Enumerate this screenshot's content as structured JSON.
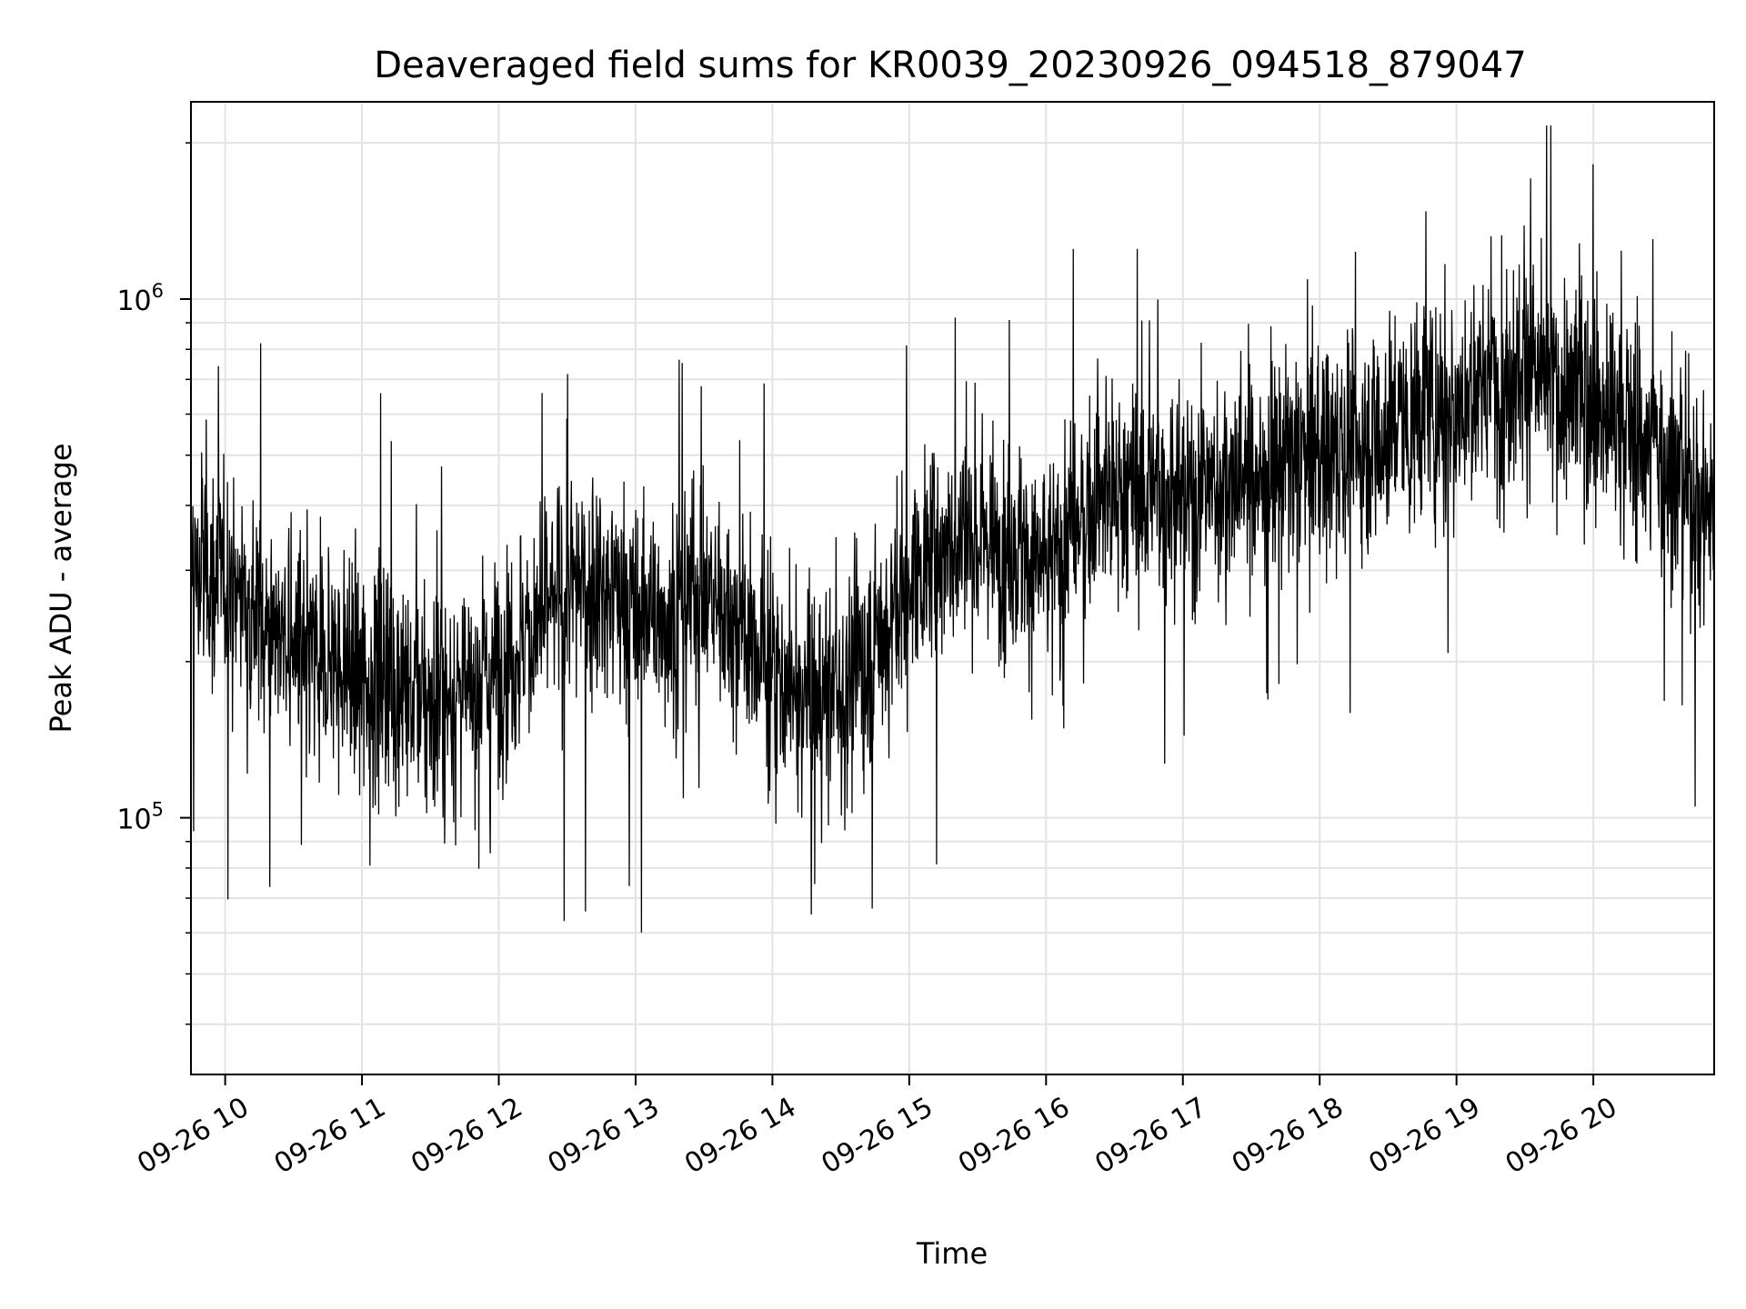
{
  "chart_data": {
    "type": "line",
    "title": "Deaveraged field sums for KR0039_20230926_094518_879047",
    "xlabel": "Time",
    "ylabel": "Peak ADU - average",
    "yscale": "log",
    "ylim": [
      32000,
      2400000
    ],
    "xlim": [
      "09-26 09:45",
      "09-26 20:53"
    ],
    "grid": true,
    "legend": "none",
    "line_color": "#000000",
    "x_ticks": [
      {
        "label": "09-26 10",
        "hour": 10
      },
      {
        "label": "09-26 11",
        "hour": 11
      },
      {
        "label": "09-26 12",
        "hour": 12
      },
      {
        "label": "09-26 13",
        "hour": 13
      },
      {
        "label": "09-26 14",
        "hour": 14
      },
      {
        "label": "09-26 15",
        "hour": 15
      },
      {
        "label": "09-26 16",
        "hour": 16
      },
      {
        "label": "09-26 17",
        "hour": 17
      },
      {
        "label": "09-26 18",
        "hour": 18
      },
      {
        "label": "09-26 19",
        "hour": 19
      },
      {
        "label": "09-26 20",
        "hour": 20
      }
    ],
    "y_ticks": [
      {
        "base": "10",
        "exp": "5",
        "value": 100000
      },
      {
        "base": "10",
        "exp": "6",
        "value": 1000000
      }
    ],
    "series": [
      {
        "x": [
          "09:45",
          "10:00",
          "10:15",
          "10:30",
          "10:45",
          "11:00",
          "11:15",
          "11:30",
          "11:45",
          "12:00",
          "12:15",
          "12:30",
          "12:45",
          "13:00",
          "13:15",
          "13:30",
          "13:45",
          "14:00",
          "14:15",
          "14:30",
          "14:45",
          "15:00",
          "15:15",
          "15:30",
          "15:45",
          "16:00",
          "16:15",
          "16:30",
          "16:45",
          "17:00",
          "17:15",
          "17:30",
          "17:45",
          "18:00",
          "18:15",
          "18:30",
          "18:45",
          "19:00",
          "19:15",
          "19:30",
          "19:45",
          "20:00",
          "20:15",
          "20:30",
          "20:45",
          "20:53"
        ],
        "values": [
          300000,
          290000,
          250000,
          210000,
          200000,
          190000,
          180000,
          165000,
          175000,
          195000,
          230000,
          270000,
          280000,
          240000,
          250000,
          280000,
          230000,
          190000,
          170000,
          175000,
          210000,
          290000,
          330000,
          360000,
          330000,
          300000,
          380000,
          420000,
          430000,
          410000,
          440000,
          460000,
          480000,
          500000,
          520000,
          560000,
          600000,
          620000,
          700000,
          740000,
          660000,
          640000,
          560000,
          500000,
          420000,
          400000
        ]
      }
    ]
  }
}
